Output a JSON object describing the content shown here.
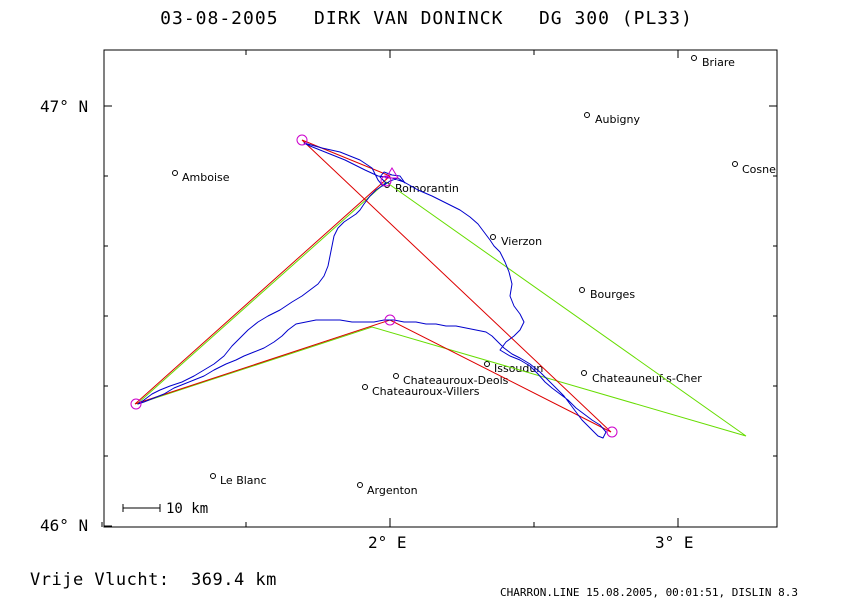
{
  "title": "03-08-2005   DIRK VAN DONINCK   DG 300 (PL33)",
  "footer_left": "Vrije Vlucht:  369.4 km",
  "footer_right": "CHARRON.LINE 15.08.2005, 00:01:51, DISLIN 8.3",
  "scale_label": "10 km",
  "axes": {
    "lat_labels": [
      "47° N",
      "46° N"
    ],
    "lon_labels": [
      "2° E",
      "3° E"
    ]
  },
  "towns": [
    {
      "name": "Briare"
    },
    {
      "name": "Aubigny"
    },
    {
      "name": "Cosne"
    },
    {
      "name": "Amboise"
    },
    {
      "name": "Romorantin"
    },
    {
      "name": "Vierzon"
    },
    {
      "name": "Bourges"
    },
    {
      "name": "Issoudun"
    },
    {
      "name": "Chateauroux-Deols"
    },
    {
      "name": "Chateauneuf-s-Cher"
    },
    {
      "name": "Chateauroux-Villers"
    },
    {
      "name": "Le Blanc"
    },
    {
      "name": "Argenton"
    }
  ],
  "colors": {
    "track": "#0000cc",
    "declared_task": "#dd0000",
    "optimized_task": "#66dd00",
    "turnpoint": "#cc00cc",
    "frame": "#000000"
  }
}
